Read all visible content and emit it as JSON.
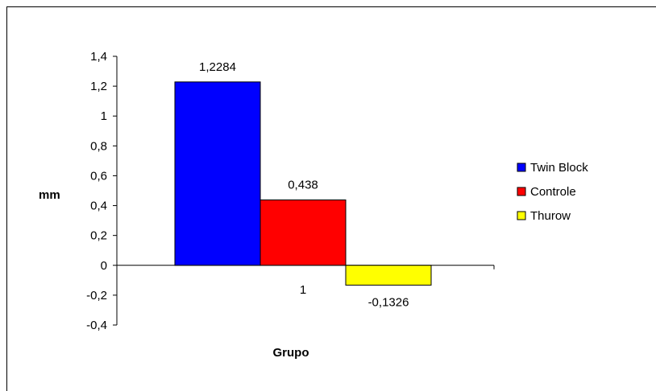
{
  "chart_data": {
    "type": "bar",
    "categories": [
      "1"
    ],
    "series": [
      {
        "name": "Twin Block",
        "values": [
          1.2284
        ],
        "label": "1,2284",
        "color": "#0000ff"
      },
      {
        "name": "Controle",
        "values": [
          0.438
        ],
        "label": "0,438",
        "color": "#ff0000"
      },
      {
        "name": "Thurow",
        "values": [
          -0.1326
        ],
        "label": "-0,1326",
        "color": "#ffff00"
      }
    ],
    "xlabel": "Grupo",
    "ylabel": "mm",
    "ylim": [
      -0.4,
      1.4
    ],
    "yticks": [
      {
        "value": 1.4,
        "label": "1,4"
      },
      {
        "value": 1.2,
        "label": "1,2"
      },
      {
        "value": 1.0,
        "label": "1"
      },
      {
        "value": 0.8,
        "label": "0,8"
      },
      {
        "value": 0.6,
        "label": "0,6"
      },
      {
        "value": 0.4,
        "label": "0,4"
      },
      {
        "value": 0.2,
        "label": "0,2"
      },
      {
        "value": 0.0,
        "label": "0"
      },
      {
        "value": -0.2,
        "label": "-0,2"
      },
      {
        "value": -0.4,
        "label": "-0,4"
      }
    ],
    "grid": false,
    "legend_position": "right"
  }
}
